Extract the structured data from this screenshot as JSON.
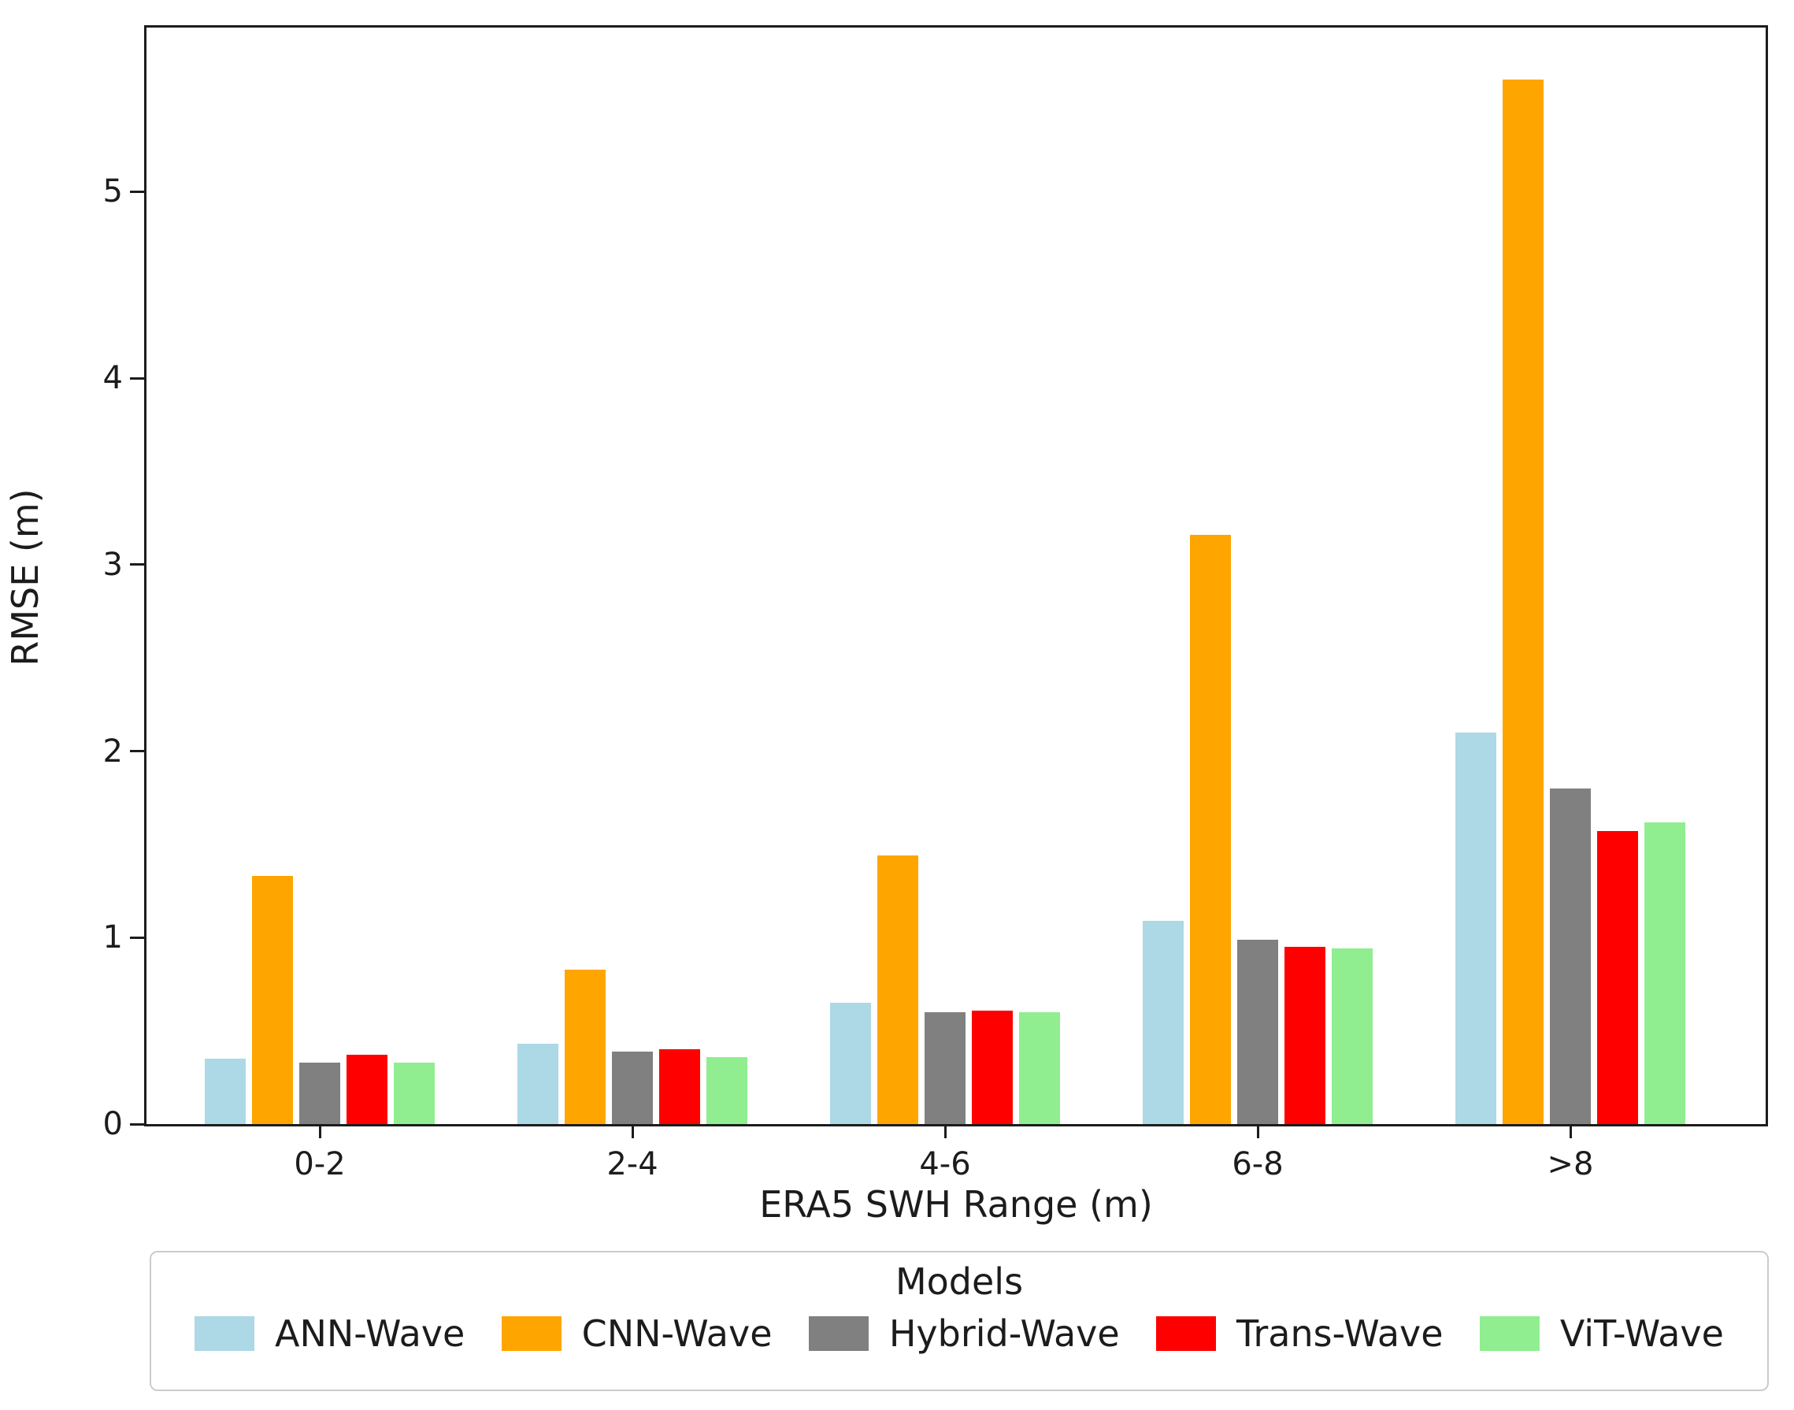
{
  "chart_data": {
    "type": "bar",
    "title": "",
    "xlabel": "ERA5 SWH Range (m)",
    "ylabel": "RMSE (m)",
    "categories": [
      "0-2",
      "2-4",
      "4-6",
      "6-8",
      ">8"
    ],
    "series": [
      {
        "name": "ANN-Wave",
        "color": "#ADD8E6",
        "values": [
          0.35,
          0.43,
          0.65,
          1.09,
          2.1
        ]
      },
      {
        "name": "CNN-Wave",
        "color": "#FFA500",
        "values": [
          1.33,
          0.83,
          1.44,
          3.16,
          5.6
        ]
      },
      {
        "name": "Hybrid-Wave",
        "color": "#808080",
        "values": [
          0.33,
          0.39,
          0.6,
          0.99,
          1.8
        ]
      },
      {
        "name": "Trans-Wave",
        "color": "#FF0000",
        "values": [
          0.37,
          0.4,
          0.61,
          0.95,
          1.57
        ]
      },
      {
        "name": "ViT-Wave",
        "color": "#90EE90",
        "values": [
          0.33,
          0.36,
          0.6,
          0.94,
          1.62
        ]
      }
    ],
    "y_ticks": [
      0,
      1,
      2,
      3,
      4,
      5
    ],
    "ylim": [
      0,
      5.88
    ],
    "grid": false,
    "legend": {
      "title": "Models",
      "position": "bottom"
    }
  },
  "colors": {
    "spine": "#1c1c1c",
    "legend_border": "#cccccc",
    "background": "#ffffff"
  }
}
